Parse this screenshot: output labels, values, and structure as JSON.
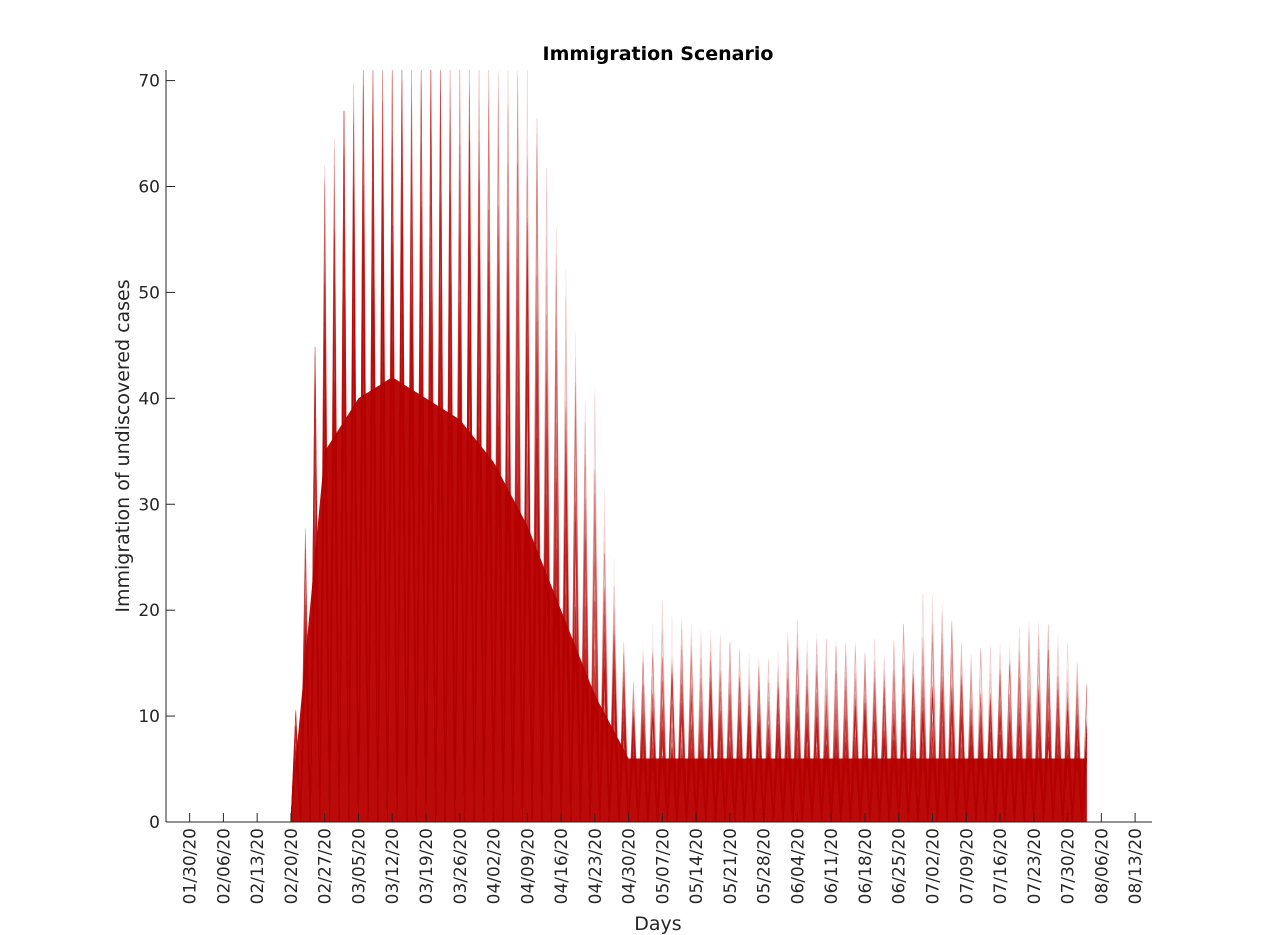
{
  "chart_data": {
    "type": "line",
    "title": "Immigration Scenario",
    "xlabel": "Days",
    "ylabel": "Immigration of undiscovered cases",
    "ylim": [
      0,
      71
    ],
    "yticks": [
      0,
      10,
      20,
      30,
      40,
      50,
      60,
      70
    ],
    "x_start": "01/30/20",
    "x_end": "08/13/20",
    "xticks": [
      "01/30/20",
      "02/06/20",
      "02/13/20",
      "02/20/20",
      "02/27/20",
      "03/05/20",
      "03/12/20",
      "03/19/20",
      "03/26/20",
      "04/02/20",
      "04/09/20",
      "04/16/20",
      "04/23/20",
      "04/30/20",
      "05/07/20",
      "05/14/20",
      "05/21/20",
      "05/28/20",
      "06/04/20",
      "06/11/20",
      "06/18/20",
      "06/25/20",
      "07/02/20",
      "07/09/20",
      "07/16/20",
      "07/23/20",
      "07/30/20",
      "08/06/20",
      "08/13/20"
    ],
    "grid": false,
    "series_color": "#bb0a0a",
    "series": [
      {
        "values_description_dates": [
          "02/20/20",
          "02/27/20",
          "03/05/20",
          "03/12/20",
          "03/19/20",
          "03/26/20",
          "04/02/20",
          "04/09/20",
          "04/16/20",
          "04/23/20",
          "04/30/20",
          "05/07/20",
          "05/14/20",
          "05/21/20",
          "05/28/20",
          "06/04/20",
          "06/11/20",
          "06/18/20",
          "06/25/20",
          "07/02/20",
          "07/09/20",
          "07/16/20",
          "07/23/20",
          "07/30/20",
          "08/03/20"
        ],
        "upper_envelope": [
          2,
          62,
          71,
          71,
          71,
          71,
          71,
          71,
          55,
          41,
          13,
          21,
          19,
          17,
          15,
          19,
          17,
          17,
          18,
          23,
          16,
          17,
          20,
          17,
          13
        ],
        "dense_core": [
          1,
          35,
          40,
          42,
          40,
          38,
          34,
          28,
          20,
          12,
          6,
          6,
          6,
          6,
          6,
          6,
          6,
          6,
          6,
          6,
          6,
          6,
          6,
          6,
          6
        ]
      }
    ]
  }
}
